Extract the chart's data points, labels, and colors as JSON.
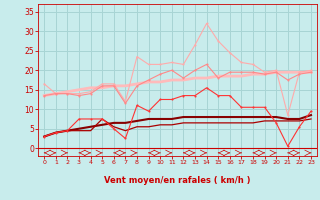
{
  "x": [
    0,
    1,
    2,
    3,
    4,
    5,
    6,
    7,
    8,
    9,
    10,
    11,
    12,
    13,
    14,
    15,
    16,
    17,
    18,
    19,
    20,
    21,
    22,
    23
  ],
  "bg_color": "#c8ecec",
  "grid_color": "#a8d4d4",
  "xlabel": "Vent moyen/en rafales ( km/h )",
  "tick_color": "#cc0000",
  "yticks": [
    0,
    5,
    10,
    15,
    20,
    25,
    30,
    35
  ],
  "ylim": [
    -2,
    37
  ],
  "xlim": [
    -0.5,
    23.5
  ],
  "line_light_pink": [
    16.5,
    14.0,
    14.0,
    14.0,
    14.5,
    16.5,
    16.5,
    12.0,
    23.5,
    21.5,
    21.5,
    22.0,
    21.5,
    26.5,
    32.0,
    27.5,
    24.5,
    22.0,
    21.5,
    19.5,
    20.0,
    8.5,
    19.5,
    20.0
  ],
  "line_pink": [
    13.5,
    14.0,
    14.0,
    13.5,
    14.0,
    16.0,
    16.0,
    11.5,
    16.0,
    17.5,
    19.0,
    20.0,
    18.0,
    20.0,
    21.5,
    18.0,
    19.5,
    19.5,
    19.5,
    19.0,
    19.5,
    17.5,
    19.0,
    19.5
  ],
  "line_trend_light": [
    13.5,
    14.0,
    14.5,
    15.0,
    15.5,
    15.5,
    16.0,
    16.0,
    16.5,
    17.0,
    17.0,
    17.5,
    17.5,
    18.0,
    18.0,
    18.5,
    18.5,
    18.5,
    19.0,
    19.0,
    19.5,
    19.5,
    19.5,
    19.5
  ],
  "line_trend_dark": [
    3.0,
    4.0,
    4.5,
    5.0,
    5.5,
    6.0,
    6.5,
    6.5,
    7.0,
    7.5,
    7.5,
    7.5,
    8.0,
    8.0,
    8.0,
    8.0,
    8.0,
    8.0,
    8.0,
    8.0,
    8.0,
    7.5,
    7.5,
    8.5
  ],
  "line_red_dotted": [
    3.0,
    4.0,
    4.5,
    7.5,
    7.5,
    7.5,
    5.0,
    2.5,
    11.0,
    9.5,
    12.5,
    12.5,
    13.5,
    13.5,
    15.5,
    13.5,
    13.5,
    10.5,
    10.5,
    10.5,
    6.5,
    0.5,
    5.5,
    9.5
  ],
  "line_dark_red": [
    3.0,
    4.0,
    4.5,
    4.5,
    4.5,
    7.5,
    5.5,
    4.5,
    5.5,
    5.5,
    6.0,
    6.0,
    6.5,
    6.5,
    6.5,
    6.5,
    6.5,
    6.5,
    6.5,
    7.0,
    7.0,
    7.0,
    7.0,
    7.5
  ],
  "color_light_pink": "#ffaaaa",
  "color_pink": "#ff8888",
  "color_trend_light": "#ffbbbb",
  "color_red": "#ff3333",
  "color_dark_red": "#aa0000",
  "color_trend_dark": "#880000"
}
